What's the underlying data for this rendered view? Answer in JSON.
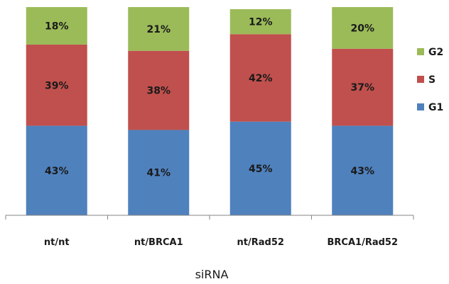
{
  "chart_data": {
    "type": "bar",
    "stacked": true,
    "percent_stacked": true,
    "categories": [
      "nt/nt",
      "nt/BRCA1",
      "nt/Rad52",
      "BRCA1/Rad52"
    ],
    "series": [
      {
        "name": "G1",
        "values": [
          43,
          41,
          45,
          43
        ],
        "labels": [
          "43%",
          "41%",
          "45%",
          "43%"
        ],
        "color": "#4f81bd"
      },
      {
        "name": "S",
        "values": [
          39,
          38,
          42,
          37
        ],
        "labels": [
          "39%",
          "38%",
          "42%",
          "37%"
        ],
        "color": "#c0504d"
      },
      {
        "name": "G2",
        "values": [
          18,
          21,
          12,
          20
        ],
        "labels": [
          "18%",
          "21%",
          "12%",
          "20%"
        ],
        "color": "#9bbb59"
      }
    ],
    "title": "",
    "xlabel": "siRNA",
    "ylabel": "",
    "ylim": [
      0,
      100
    ],
    "grid": false,
    "legend": {
      "position": "right",
      "order": [
        "G2",
        "S",
        "G1"
      ]
    }
  }
}
